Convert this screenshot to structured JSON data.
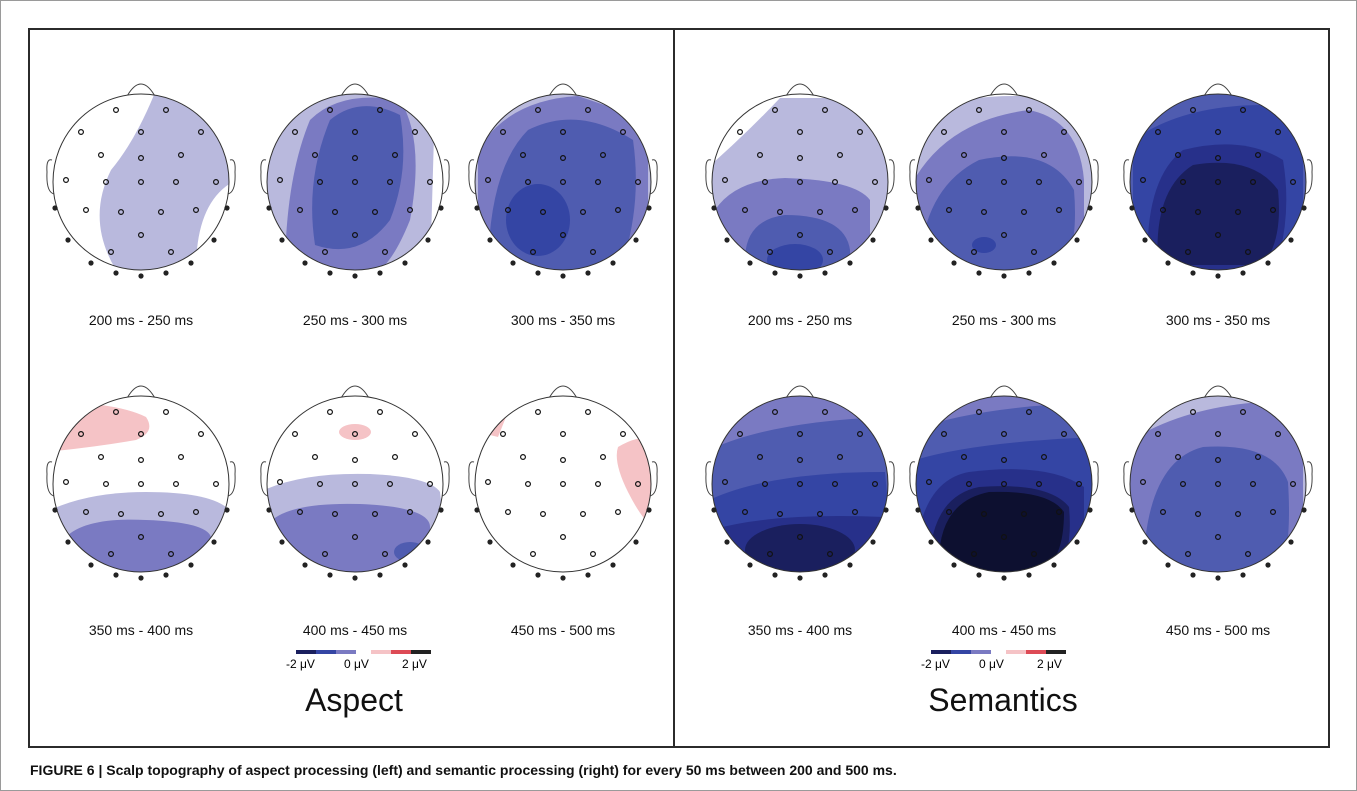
{
  "caption": "FIGURE 6 | Scalp topography of aspect processing (left) and semantic processing (right) for every 50 ms between 200 and 500 ms.",
  "colors": {
    "neg1": "#b9b9dd",
    "neg2": "#7a7ac2",
    "neg3": "#4f5cb0",
    "neg4": "#3445a4",
    "neg5": "#27308a",
    "neg6": "#1a1f5e",
    "neg7": "#0d1030",
    "pos1": "#f5c3c6",
    "pos2": "#dd4a55"
  },
  "panels": [
    {
      "title": "Aspect",
      "colorbar": {
        "min_label": "-2 μV",
        "mid_label": "0 μV",
        "max_label": "2 μV"
      },
      "maps": [
        {
          "time": "200 ms - 250 ms"
        },
        {
          "time": "250 ms - 300 ms"
        },
        {
          "time": "300 ms - 350 ms"
        },
        {
          "time": "350 ms - 400 ms"
        },
        {
          "time": "400 ms - 450 ms"
        },
        {
          "time": "450 ms - 500 ms"
        }
      ]
    },
    {
      "title": "Semantics",
      "colorbar": {
        "min_label": "-2 μV",
        "mid_label": "0 μV",
        "max_label": "2 μV"
      },
      "maps": [
        {
          "time": "200 ms - 250 ms"
        },
        {
          "time": "250 ms - 300 ms"
        },
        {
          "time": "300 ms - 350 ms"
        },
        {
          "time": "350 ms - 400 ms"
        },
        {
          "time": "400 ms - 450 ms"
        },
        {
          "time": "450 ms - 500 ms"
        }
      ]
    }
  ]
}
